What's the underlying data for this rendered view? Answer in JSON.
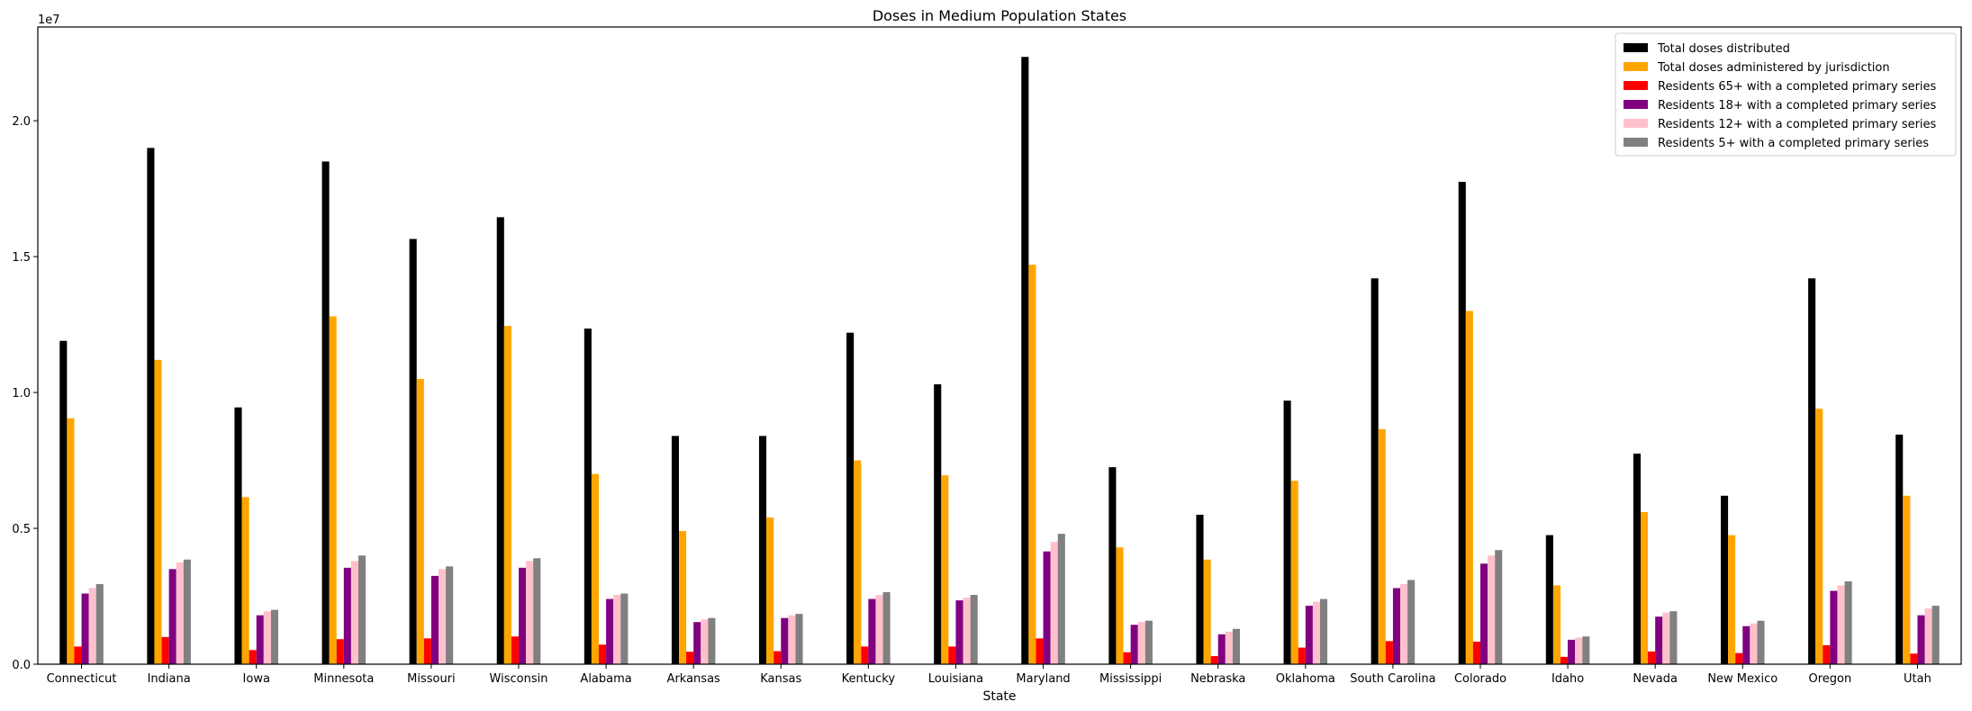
{
  "chart_data": {
    "type": "bar",
    "title": "Doses in Medium Population States",
    "xlabel": "State",
    "ylabel": "",
    "y_scale_label": "1e7",
    "y_scale": 10000000,
    "ylim": [
      0,
      23450000
    ],
    "yticks": [
      0,
      5000000,
      10000000,
      15000000,
      20000000
    ],
    "ytick_labels": [
      "0.0",
      "0.5",
      "1.0",
      "1.5",
      "2.0"
    ],
    "legend_position": "top-right",
    "categories": [
      "Connecticut",
      "Indiana",
      "Iowa",
      "Minnesota",
      "Missouri",
      "Wisconsin",
      "Alabama",
      "Arkansas",
      "Kansas",
      "Kentucky",
      "Louisiana",
      "Maryland",
      "Mississippi",
      "Nebraska",
      "Oklahoma",
      "South Carolina",
      "Colorado",
      "Idaho",
      "Nevada",
      "New Mexico",
      "Oregon",
      "Utah"
    ],
    "series": [
      {
        "name": "Total doses distributed",
        "color": "#000000",
        "values": [
          11900000,
          19000000,
          9450000,
          18500000,
          15650000,
          16450000,
          12350000,
          8400000,
          8400000,
          12200000,
          10300000,
          22350000,
          7250000,
          5500000,
          9700000,
          14200000,
          17750000,
          4750000,
          7750000,
          6200000,
          14200000,
          8450000
        ]
      },
      {
        "name": "Total doses administered by jurisdiction",
        "color": "#FFA500",
        "values": [
          9050000,
          11200000,
          6150000,
          12800000,
          10500000,
          12450000,
          7000000,
          4900000,
          5400000,
          7500000,
          6950000,
          14700000,
          4300000,
          3850000,
          6750000,
          8650000,
          13000000,
          2900000,
          5600000,
          4750000,
          9400000,
          6200000
        ]
      },
      {
        "name": "Residents 65+ with a completed primary series",
        "color": "#FF0000",
        "values": [
          650000,
          1000000,
          520000,
          920000,
          950000,
          1020000,
          720000,
          460000,
          480000,
          650000,
          650000,
          950000,
          440000,
          300000,
          610000,
          850000,
          830000,
          270000,
          470000,
          410000,
          700000,
          390000
        ]
      },
      {
        "name": "Residents 18+ with a completed primary series",
        "color": "#800080",
        "values": [
          2600000,
          3500000,
          1800000,
          3550000,
          3250000,
          3550000,
          2400000,
          1550000,
          1700000,
          2400000,
          2350000,
          4150000,
          1450000,
          1100000,
          2150000,
          2800000,
          3700000,
          900000,
          1750000,
          1400000,
          2700000,
          1800000
        ]
      },
      {
        "name": "Residents 12+ with a completed primary series",
        "color": "#FFC0CB",
        "values": [
          2800000,
          3750000,
          1950000,
          3800000,
          3500000,
          3800000,
          2550000,
          1650000,
          1800000,
          2550000,
          2450000,
          4500000,
          1550000,
          1200000,
          2300000,
          2950000,
          4000000,
          980000,
          1900000,
          1500000,
          2900000,
          2050000
        ]
      },
      {
        "name": "Residents 5+ with a completed primary series",
        "color": "#808080",
        "values": [
          2950000,
          3850000,
          2000000,
          4000000,
          3600000,
          3900000,
          2600000,
          1700000,
          1850000,
          2650000,
          2550000,
          4800000,
          1600000,
          1300000,
          2400000,
          3100000,
          4200000,
          1020000,
          1950000,
          1600000,
          3050000,
          2150000
        ]
      }
    ]
  }
}
